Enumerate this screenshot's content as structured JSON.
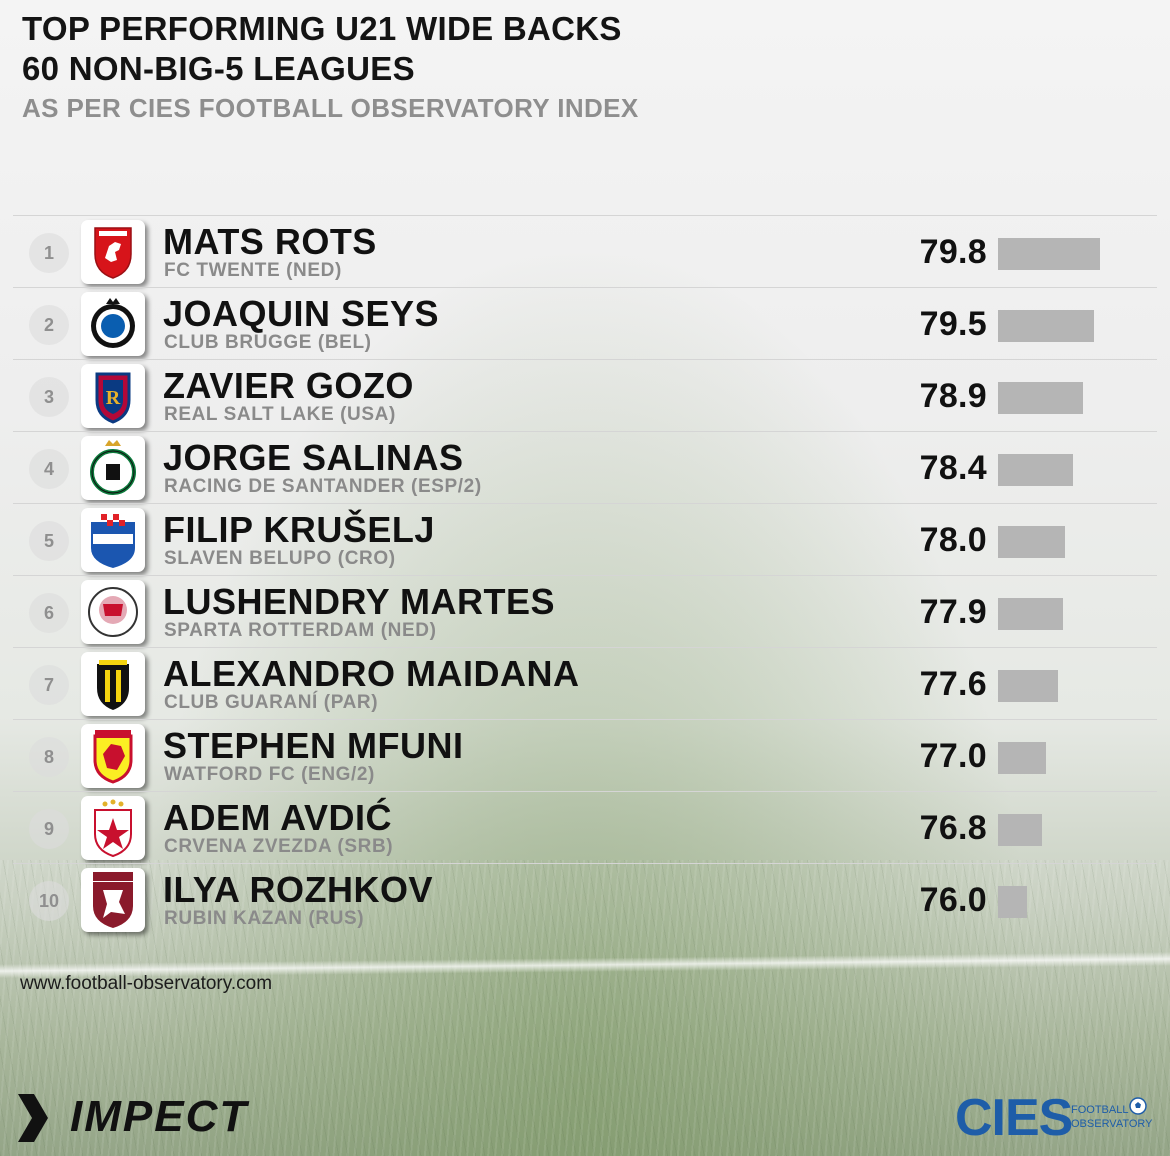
{
  "header": {
    "title_line1": "TOP PERFORMING U21 WIDE BACKS",
    "title_line2": "60 NON-BIG-5 LEAGUES",
    "subtitle": "AS PER CIES FOOTBALL OBSERVATORY INDEX"
  },
  "chart_data": {
    "type": "bar",
    "categories": [
      "MATS ROTS",
      "JOAQUIN SEYS",
      "ZAVIER GOZO",
      "JORGE SALINAS",
      "FILIP KRUŠELJ",
      "LUSHENDRY MARTES",
      "ALEXANDRO MAIDANA",
      "STEPHEN MFUNI",
      "ADEM AVDIĆ",
      "ILYA ROZHKOV"
    ],
    "values": [
      79.8,
      79.5,
      78.9,
      78.4,
      78.0,
      77.9,
      77.6,
      77.0,
      76.8,
      76.0
    ],
    "value_labels": [
      "79.8",
      "79.5",
      "78.9",
      "78.4",
      "78.0",
      "77.9",
      "77.6",
      "77.0",
      "76.8",
      "76.0"
    ],
    "bar_color": "#b5b5b5"
  },
  "players": [
    {
      "rank": "1",
      "name": "MATS ROTS",
      "club": "FC TWENTE (NED)",
      "logo": "fc-twente-crest"
    },
    {
      "rank": "2",
      "name": "JOAQUIN SEYS",
      "club": "CLUB BRUGGE (BEL)",
      "logo": "club-brugge-crest"
    },
    {
      "rank": "3",
      "name": "ZAVIER GOZO",
      "club": "REAL SALT LAKE (USA)",
      "logo": "real-salt-lake-crest"
    },
    {
      "rank": "4",
      "name": "JORGE SALINAS",
      "club": "RACING DE SANTANDER (ESP/2)",
      "logo": "racing-santander-crest"
    },
    {
      "rank": "5",
      "name": "FILIP KRUŠELJ",
      "club": "SLAVEN BELUPO (CRO)",
      "logo": "slaven-belupo-crest"
    },
    {
      "rank": "6",
      "name": "LUSHENDRY MARTES",
      "club": "SPARTA ROTTERDAM (NED)",
      "logo": "sparta-rotterdam-crest"
    },
    {
      "rank": "7",
      "name": "ALEXANDRO MAIDANA",
      "club": "CLUB GUARANÍ (PAR)",
      "logo": "club-guarani-crest"
    },
    {
      "rank": "8",
      "name": "STEPHEN MFUNI",
      "club": "WATFORD FC (ENG/2)",
      "logo": "watford-crest"
    },
    {
      "rank": "9",
      "name": "ADEM AVDIĆ",
      "club": "CRVENA ZVEZDA (SRB)",
      "logo": "crvena-zvezda-crest"
    },
    {
      "rank": "10",
      "name": "ILYA ROZHKOV",
      "club": "RUBIN KAZAN (RUS)",
      "logo": "rubin-kazan-crest"
    }
  ],
  "footer": {
    "website": "www.football-observatory.com",
    "brand_left": "IMPECT",
    "brand_right": "CIES",
    "brand_right_sub1": "FOOTBALL",
    "brand_right_sub2": "OBSERVATORY"
  }
}
